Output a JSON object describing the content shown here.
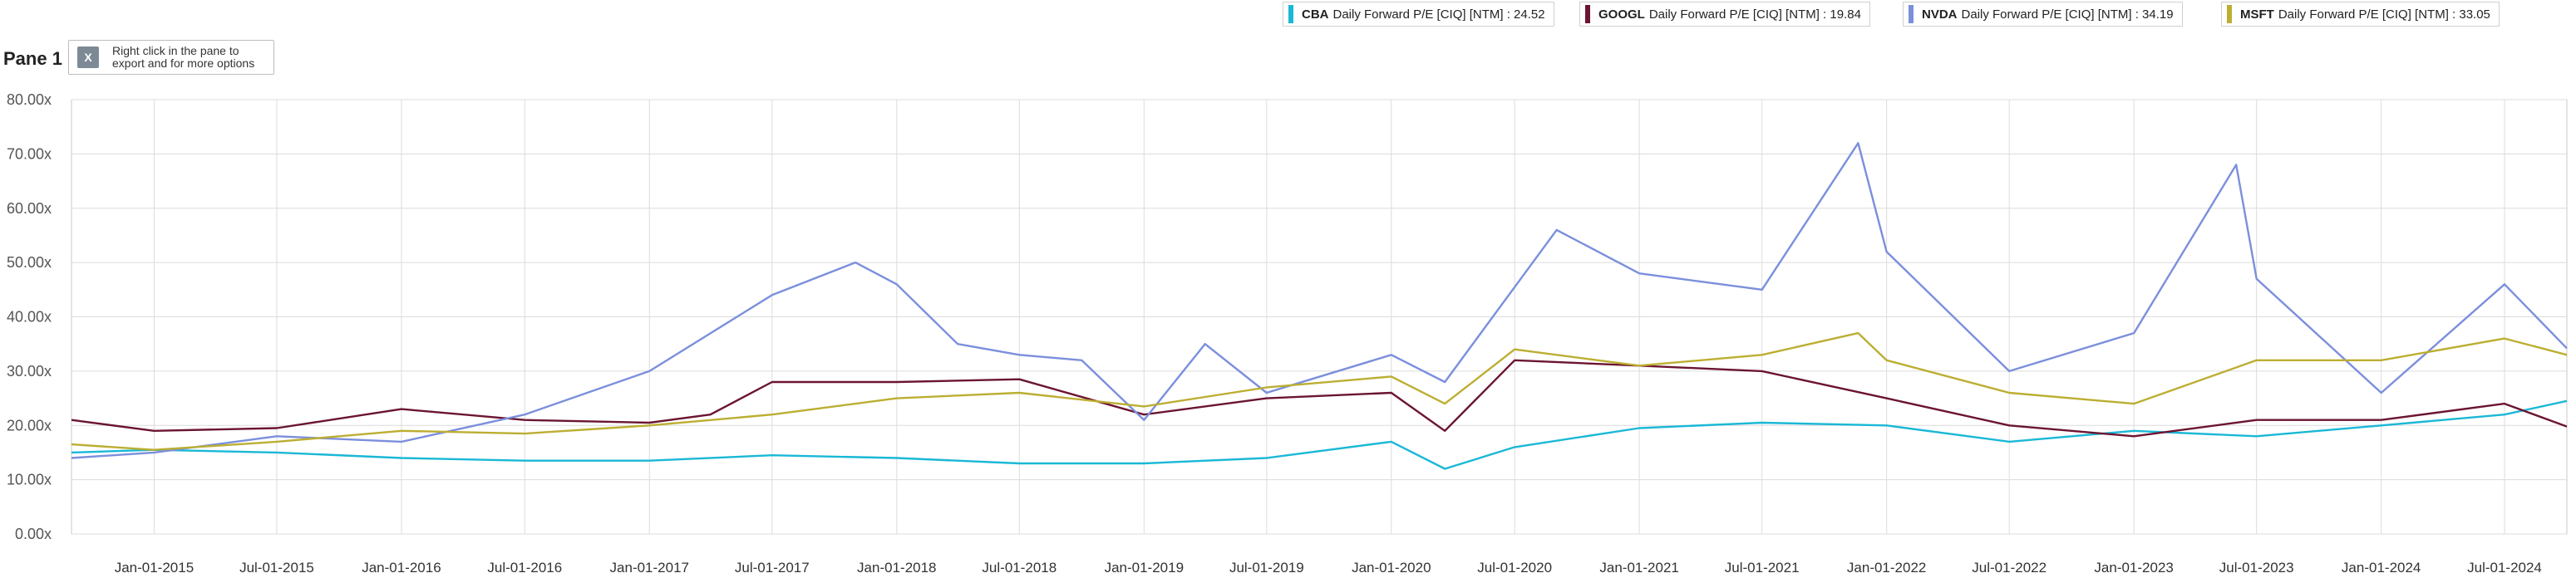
{
  "pane": {
    "title": "Pane 1",
    "export_icon": "excel-icon",
    "export_hint": "Right click in the pane to export and for more options"
  },
  "legend": [
    {
      "ticker": "CBA",
      "label": "Daily Forward P/E [CIQ] [NTM] : 24.52",
      "color": "#1ab8d6"
    },
    {
      "ticker": "GOOGL",
      "label": "Daily Forward P/E [CIQ] [NTM] : 19.84",
      "color": "#6b1530"
    },
    {
      "ticker": "NVDA",
      "label": "Daily Forward P/E [CIQ] [NTM] : 34.19",
      "color": "#7b8fdc"
    },
    {
      "ticker": "MSFT",
      "label": "Daily Forward P/E [CIQ] [NTM] : 33.05",
      "color": "#bcae32"
    }
  ],
  "chart_data": {
    "type": "line",
    "ylim": [
      0,
      80
    ],
    "yticks": [
      "0.00x",
      "10.00x",
      "20.00x",
      "30.00x",
      "40.00x",
      "50.00x",
      "60.00x",
      "70.00x",
      "80.00x"
    ],
    "xlim": [
      "2014-09-01",
      "2024-10-01"
    ],
    "xticks": [
      {
        "date": "2015-01-01",
        "label": "Jan-01-2015"
      },
      {
        "date": "2015-07-01",
        "label": "Jul-01-2015"
      },
      {
        "date": "2016-01-01",
        "label": "Jan-01-2016"
      },
      {
        "date": "2016-07-01",
        "label": "Jul-01-2016"
      },
      {
        "date": "2017-01-01",
        "label": "Jan-01-2017"
      },
      {
        "date": "2017-07-01",
        "label": "Jul-01-2017"
      },
      {
        "date": "2018-01-01",
        "label": "Jan-01-2018"
      },
      {
        "date": "2018-07-01",
        "label": "Jul-01-2018"
      },
      {
        "date": "2019-01-01",
        "label": "Jan-01-2019"
      },
      {
        "date": "2019-07-01",
        "label": "Jul-01-2019"
      },
      {
        "date": "2020-01-01",
        "label": "Jan-01-2020"
      },
      {
        "date": "2020-07-01",
        "label": "Jul-01-2020"
      },
      {
        "date": "2021-01-01",
        "label": "Jan-01-2021"
      },
      {
        "date": "2021-07-01",
        "label": "Jul-01-2021"
      },
      {
        "date": "2022-01-01",
        "label": "Jan-01-2022"
      },
      {
        "date": "2022-07-01",
        "label": "Jul-01-2022"
      },
      {
        "date": "2023-01-01",
        "label": "Jan-01-2023"
      },
      {
        "date": "2023-07-01",
        "label": "Jul-01-2023"
      },
      {
        "date": "2024-01-01",
        "label": "Jan-01-2024"
      },
      {
        "date": "2024-07-01",
        "label": "Jul-01-2024"
      }
    ],
    "grid": true,
    "series": [
      {
        "name": "CBA",
        "color": "#1ab8d6",
        "x": [
          "2014-09-01",
          "2015-01-01",
          "2015-07-01",
          "2016-01-01",
          "2016-07-01",
          "2017-01-01",
          "2017-07-01",
          "2018-01-01",
          "2018-07-01",
          "2019-01-01",
          "2019-07-01",
          "2020-01-01",
          "2020-03-20",
          "2020-07-01",
          "2021-01-01",
          "2021-07-01",
          "2022-01-01",
          "2022-07-01",
          "2023-01-01",
          "2023-07-01",
          "2024-01-01",
          "2024-07-01",
          "2024-10-01"
        ],
        "values": [
          15.0,
          15.5,
          15.0,
          14.0,
          13.5,
          13.5,
          14.5,
          14.0,
          13.0,
          13.0,
          14.0,
          17.0,
          12.0,
          16.0,
          19.5,
          20.5,
          20.0,
          17.0,
          19.0,
          18.0,
          20.0,
          22.0,
          24.5
        ]
      },
      {
        "name": "GOOGL",
        "color": "#6b1530",
        "x": [
          "2014-09-01",
          "2015-01-01",
          "2015-07-01",
          "2016-01-01",
          "2016-07-01",
          "2017-01-01",
          "2017-04-01",
          "2017-07-01",
          "2018-01-01",
          "2018-07-01",
          "2019-01-01",
          "2019-07-01",
          "2020-01-01",
          "2020-03-20",
          "2020-07-01",
          "2021-01-01",
          "2021-07-01",
          "2022-01-01",
          "2022-07-01",
          "2023-01-01",
          "2023-07-01",
          "2024-01-01",
          "2024-07-01",
          "2024-10-01"
        ],
        "values": [
          21.0,
          19.0,
          19.5,
          23.0,
          21.0,
          20.5,
          22.0,
          28.0,
          28.0,
          28.5,
          22.0,
          25.0,
          26.0,
          19.0,
          32.0,
          31.0,
          30.0,
          25.0,
          20.0,
          18.0,
          21.0,
          21.0,
          24.0,
          19.8
        ]
      },
      {
        "name": "NVDA",
        "color": "#7b8fdc",
        "x": [
          "2014-09-01",
          "2015-01-01",
          "2015-07-01",
          "2016-01-01",
          "2016-07-01",
          "2017-01-01",
          "2017-07-01",
          "2017-11-01",
          "2018-01-01",
          "2018-04-01",
          "2018-07-01",
          "2018-10-01",
          "2019-01-01",
          "2019-04-01",
          "2019-07-01",
          "2020-01-01",
          "2020-03-20",
          "2020-09-01",
          "2021-01-01",
          "2021-07-01",
          "2021-11-20",
          "2022-01-01",
          "2022-07-01",
          "2023-01-01",
          "2023-06-01",
          "2023-07-01",
          "2024-01-01",
          "2024-07-01",
          "2024-10-01"
        ],
        "values": [
          14.0,
          15.0,
          18.0,
          17.0,
          22.0,
          30.0,
          44.0,
          50.0,
          46.0,
          35.0,
          33.0,
          32.0,
          21.0,
          35.0,
          26.0,
          33.0,
          28.0,
          56.0,
          48.0,
          45.0,
          72.0,
          52.0,
          30.0,
          37.0,
          68.0,
          47.0,
          26.0,
          46.0,
          34.2
        ]
      },
      {
        "name": "MSFT",
        "color": "#bcae32",
        "x": [
          "2014-09-01",
          "2015-01-01",
          "2015-07-01",
          "2016-01-01",
          "2016-07-01",
          "2017-01-01",
          "2017-07-01",
          "2018-01-01",
          "2018-07-01",
          "2019-01-01",
          "2019-07-01",
          "2020-01-01",
          "2020-03-20",
          "2020-07-01",
          "2021-01-01",
          "2021-07-01",
          "2021-11-20",
          "2022-01-01",
          "2022-07-01",
          "2023-01-01",
          "2023-07-01",
          "2024-01-01",
          "2024-07-01",
          "2024-10-01"
        ],
        "values": [
          16.5,
          15.5,
          17.0,
          19.0,
          18.5,
          20.0,
          22.0,
          25.0,
          26.0,
          23.5,
          27.0,
          29.0,
          24.0,
          34.0,
          31.0,
          33.0,
          37.0,
          32.0,
          26.0,
          24.0,
          32.0,
          32.0,
          36.0,
          33.0
        ]
      }
    ]
  }
}
